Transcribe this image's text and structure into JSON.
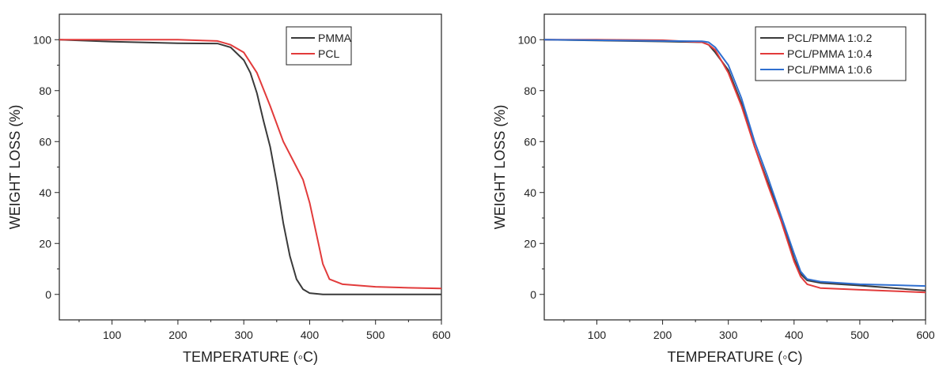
{
  "chart_data": [
    {
      "type": "line",
      "xlabel": "TEMPERATURE (◦C)",
      "ylabel": "WEIGHT LOSS (%)",
      "xlim": [
        20,
        600
      ],
      "ylim": [
        -10,
        110
      ],
      "xticks": [
        100,
        200,
        300,
        400,
        500,
        600
      ],
      "yticks": [
        0,
        20,
        40,
        60,
        80,
        100
      ],
      "legend": "top-right",
      "series": [
        {
          "name": "PMMA",
          "color": "#3a3a3a",
          "x": [
            20,
            100,
            200,
            260,
            280,
            300,
            310,
            320,
            330,
            340,
            350,
            360,
            370,
            380,
            390,
            400,
            420,
            450,
            500,
            600
          ],
          "y": [
            100,
            99.2,
            98.6,
            98.5,
            97,
            92,
            87,
            79,
            68,
            58,
            44,
            28,
            15,
            6,
            2,
            0.5,
            0,
            0,
            0,
            0
          ]
        },
        {
          "name": "PCL",
          "color": "#e23b3b",
          "x": [
            20,
            100,
            200,
            260,
            280,
            300,
            320,
            340,
            360,
            380,
            390,
            400,
            410,
            420,
            430,
            450,
            500,
            550,
            600
          ],
          "y": [
            100,
            100,
            100,
            99.5,
            98,
            95,
            87,
            74,
            60,
            50,
            45,
            36,
            24,
            12,
            6,
            4,
            3,
            2.6,
            2.3
          ]
        }
      ]
    },
    {
      "type": "line",
      "xlabel": "TEMPERATURE (◦C)",
      "ylabel": "WEIGHT LOSS (%)",
      "xlim": [
        20,
        600
      ],
      "ylim": [
        -10,
        110
      ],
      "xticks": [
        100,
        200,
        300,
        400,
        500,
        600
      ],
      "yticks": [
        0,
        20,
        40,
        60,
        80,
        100
      ],
      "legend": "top-right",
      "series": [
        {
          "name": "PCL/PMMA 1:0.2",
          "color": "#3a3a3a",
          "x": [
            20,
            100,
            200,
            260,
            270,
            280,
            300,
            320,
            340,
            360,
            380,
            400,
            410,
            420,
            440,
            500,
            600
          ],
          "y": [
            100,
            99.7,
            99.3,
            99,
            98,
            95,
            88,
            75,
            58,
            44,
            30,
            14,
            8,
            5.5,
            4.5,
            3.5,
            1.5
          ]
        },
        {
          "name": "PCL/PMMA 1:0.4",
          "color": "#e23b3b",
          "x": [
            20,
            100,
            200,
            260,
            270,
            280,
            300,
            320,
            340,
            360,
            380,
            400,
            410,
            420,
            440,
            500,
            600
          ],
          "y": [
            100,
            100,
            99.8,
            99,
            98,
            96,
            87,
            74,
            58,
            43,
            29,
            13,
            7,
            4,
            2.5,
            1.8,
            0.8
          ]
        },
        {
          "name": "PCL/PMMA 1:0.6",
          "color": "#2f6fd0",
          "x": [
            20,
            100,
            200,
            260,
            270,
            280,
            300,
            320,
            340,
            360,
            380,
            400,
            410,
            420,
            440,
            500,
            600
          ],
          "y": [
            100,
            99.8,
            99.5,
            99.4,
            99,
            97,
            90,
            77,
            60,
            46,
            31,
            16,
            9,
            6,
            5,
            4,
            3.3
          ]
        }
      ]
    }
  ]
}
